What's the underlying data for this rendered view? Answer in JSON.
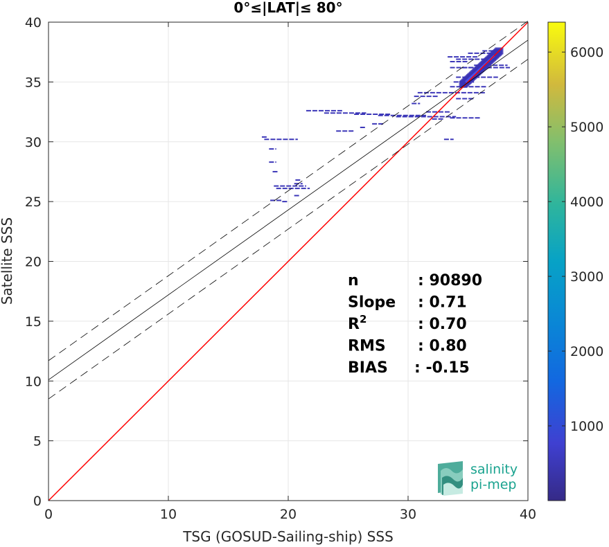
{
  "chart_data": {
    "type": "scatter",
    "title": "0°≤|LAT|≤ 80°",
    "xlabel": "TSG (GOSUD-Sailing-ship) SSS",
    "ylabel": "Satellite SSS",
    "xlim": [
      0,
      40
    ],
    "ylim": [
      0,
      40
    ],
    "xticks": [
      0,
      10,
      20,
      30,
      40
    ],
    "yticks": [
      0,
      5,
      10,
      15,
      20,
      25,
      30,
      35,
      40
    ],
    "grid": true,
    "colorbar": {
      "colormap": "parula",
      "range": [
        0,
        6400
      ],
      "ticks": [
        1000,
        2000,
        3000,
        4000,
        5000,
        6000
      ]
    },
    "lines": {
      "identity": {
        "slope": 1,
        "intercept": 0,
        "color": "#ff0000"
      },
      "fit": {
        "slope": 0.71,
        "intercept": 10.1,
        "color": "#000000"
      },
      "fit_band_offset": 1.6
    },
    "stats": [
      {
        "label": "n",
        "value": ": 90890"
      },
      {
        "label": "Slope",
        "value": ": 0.71"
      },
      {
        "label": "R",
        "sup": "2",
        "value": ": 0.70"
      },
      {
        "label": "RMS",
        "value": ": 0.80"
      },
      {
        "label": "BIAS",
        "value": ": -0.15"
      }
    ],
    "segments": [
      [
        17.8,
        18.2,
        30.4
      ],
      [
        18.0,
        20.8,
        30.2
      ],
      [
        18.4,
        19.0,
        29.4
      ],
      [
        18.4,
        19.0,
        28.3
      ],
      [
        18.7,
        19.2,
        27.5
      ],
      [
        18.8,
        21.5,
        26.3
      ],
      [
        19.0,
        21.8,
        26.1
      ],
      [
        20.5,
        21.2,
        26.5
      ],
      [
        20.6,
        21.0,
        26.8
      ],
      [
        18.5,
        19.5,
        25.1
      ],
      [
        19.5,
        20.0,
        25.0
      ],
      [
        20.5,
        21.0,
        25.5
      ],
      [
        21.5,
        24.5,
        32.6
      ],
      [
        23.0,
        26.5,
        32.4
      ],
      [
        25.5,
        28.5,
        32.3
      ],
      [
        27.5,
        31.5,
        32.2
      ],
      [
        29.0,
        34.0,
        32.1
      ],
      [
        24.0,
        25.5,
        30.9
      ],
      [
        26.0,
        26.5,
        31.2
      ],
      [
        27.0,
        28.0,
        31.5
      ],
      [
        30.3,
        31.0,
        33.2
      ],
      [
        30.5,
        32.5,
        33.8
      ],
      [
        30.8,
        36.5,
        34.1
      ],
      [
        31.5,
        33.5,
        32.5
      ],
      [
        32.0,
        33.0,
        31.9
      ],
      [
        33.5,
        36.0,
        32.0
      ],
      [
        33.0,
        33.8,
        30.2
      ],
      [
        33.8,
        35.5,
        35.0
      ],
      [
        34.0,
        37.5,
        35.4
      ],
      [
        33.5,
        36.0,
        36.2
      ],
      [
        33.5,
        35.0,
        36.7
      ],
      [
        34.0,
        36.5,
        36.9
      ],
      [
        33.3,
        35.8,
        37.1
      ],
      [
        35.0,
        37.6,
        37.4
      ],
      [
        36.2,
        37.7,
        37.6
      ],
      [
        35.5,
        38.3,
        36.4
      ],
      [
        34.5,
        38.5,
        36.2
      ],
      [
        34.0,
        35.5,
        33.6
      ],
      [
        33.5,
        36.5,
        34.6
      ]
    ],
    "cluster": {
      "x0": 34.6,
      "y0": 34.8,
      "x1": 37.6,
      "y1": 37.6
    }
  },
  "logo": {
    "line1": "salinity",
    "line2": "pi-mep"
  }
}
